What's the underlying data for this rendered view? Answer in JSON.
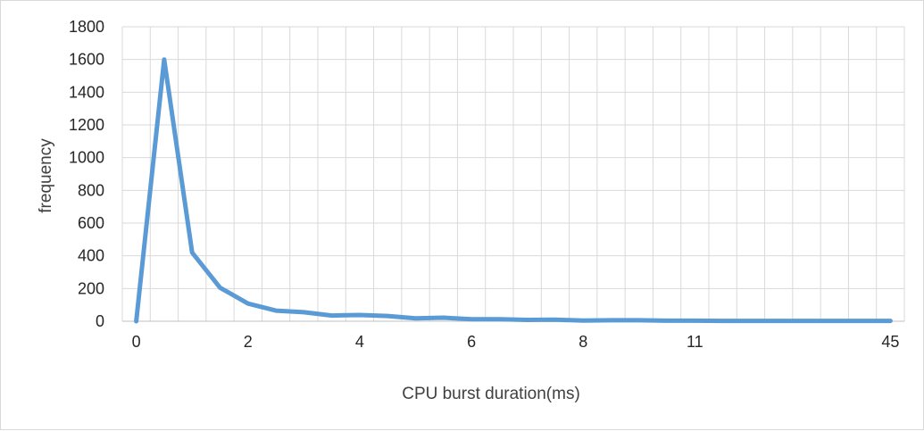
{
  "chart_data": {
    "type": "line",
    "xlabel": "CPU burst duration(ms)",
    "ylabel": "frequency",
    "ylim": [
      0,
      1800
    ],
    "y_ticks": [
      0,
      200,
      400,
      600,
      800,
      1000,
      1200,
      1400,
      1600,
      1800
    ],
    "x_tick_labels": [
      {
        "label": "0",
        "index": 0
      },
      {
        "label": "2",
        "index": 4
      },
      {
        "label": "4",
        "index": 8
      },
      {
        "label": "6",
        "index": 12
      },
      {
        "label": "8",
        "index": 16
      },
      {
        "label": "11",
        "index": 20
      },
      {
        "label": "45",
        "index": 27
      }
    ],
    "grid": "vertical and horizontal",
    "legend": "none",
    "series": [
      {
        "color": "#5b9bd5",
        "values": [
          0,
          1600,
          420,
          205,
          108,
          65,
          55,
          35,
          38,
          32,
          18,
          22,
          12,
          12,
          8,
          10,
          4,
          6,
          6,
          3,
          3,
          2,
          2,
          2,
          2,
          2,
          2,
          2
        ]
      }
    ]
  }
}
